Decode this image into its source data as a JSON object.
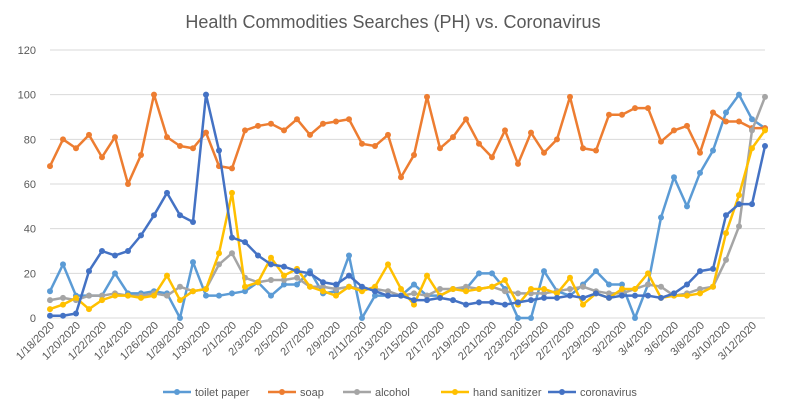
{
  "chart_data": {
    "type": "line",
    "title": "Health Commodities Searches (PH) vs. Coronavirus",
    "xlabel": "",
    "ylabel": "",
    "ylim": [
      0,
      120
    ],
    "yticks": [
      0,
      20,
      40,
      60,
      80,
      100,
      120
    ],
    "grid": true,
    "legend_position": "bottom",
    "x_tick_labels": [
      "1/18/2020",
      "1/20/2020",
      "1/22/2020",
      "1/24/2020",
      "1/26/2020",
      "1/28/2020",
      "1/30/2020",
      "2/1/2020",
      "2/3/2020",
      "2/5/2020",
      "2/7/2020",
      "2/9/2020",
      "2/11/2020",
      "2/13/2020",
      "2/15/2020",
      "2/17/2020",
      "2/19/2020",
      "2/21/2020",
      "2/23/2020",
      "2/25/2020",
      "2/27/2020",
      "2/29/2020",
      "3/2/2020",
      "3/4/2020",
      "3/6/2020",
      "3/8/2020",
      "3/10/2020",
      "3/12/2020"
    ],
    "x": [
      "1/18/2020",
      "1/19/2020",
      "1/20/2020",
      "1/21/2020",
      "1/22/2020",
      "1/23/2020",
      "1/24/2020",
      "1/25/2020",
      "1/26/2020",
      "1/27/2020",
      "1/28/2020",
      "1/29/2020",
      "1/30/2020",
      "1/31/2020",
      "2/1/2020",
      "2/2/2020",
      "2/3/2020",
      "2/4/2020",
      "2/5/2020",
      "2/6/2020",
      "2/7/2020",
      "2/8/2020",
      "2/9/2020",
      "2/10/2020",
      "2/11/2020",
      "2/12/2020",
      "2/13/2020",
      "2/14/2020",
      "2/15/2020",
      "2/16/2020",
      "2/17/2020",
      "2/18/2020",
      "2/19/2020",
      "2/20/2020",
      "2/21/2020",
      "2/22/2020",
      "2/23/2020",
      "2/24/2020",
      "2/25/2020",
      "2/26/2020",
      "2/27/2020",
      "2/28/2020",
      "2/29/2020",
      "3/1/2020",
      "3/2/2020",
      "3/3/2020",
      "3/4/2020",
      "3/5/2020",
      "3/6/2020",
      "3/7/2020",
      "3/8/2020",
      "3/9/2020",
      "3/10/2020",
      "3/11/2020",
      "3/12/2020",
      "3/13/2020"
    ],
    "series": [
      {
        "name": "toilet paper",
        "color": "#5B9BD5",
        "values": [
          12,
          24,
          10,
          10,
          10,
          20,
          11,
          11,
          12,
          11,
          0,
          25,
          10,
          10,
          11,
          12,
          16,
          10,
          15,
          15,
          21,
          11,
          12,
          28,
          0,
          10,
          10,
          10,
          15,
          10,
          10,
          13,
          13,
          20,
          20,
          13,
          0,
          0,
          21,
          12,
          10,
          15,
          21,
          15,
          15,
          0,
          15,
          45,
          63,
          50,
          65,
          75,
          92,
          100,
          89,
          85
        ]
      },
      {
        "name": "soap",
        "color": "#ED7D31",
        "values": [
          68,
          80,
          76,
          82,
          72,
          81,
          60,
          73,
          100,
          81,
          77,
          76,
          83,
          68,
          67,
          84,
          86,
          87,
          84,
          89,
          82,
          87,
          88,
          89,
          78,
          77,
          82,
          63,
          73,
          99,
          76,
          81,
          89,
          78,
          72,
          84,
          69,
          83,
          74,
          80,
          99,
          76,
          75,
          91,
          91,
          94,
          94,
          79,
          84,
          86,
          74,
          92,
          88,
          88,
          85,
          85
        ]
      },
      {
        "name": "alcohol",
        "color": "#A5A5A5",
        "values": [
          8,
          9,
          8,
          10,
          10,
          11,
          10,
          10,
          11,
          10,
          14,
          12,
          13,
          24,
          29,
          18,
          16,
          17,
          17,
          18,
          14,
          14,
          13,
          14,
          13,
          13,
          12,
          10,
          11,
          10,
          13,
          13,
          14,
          13,
          14,
          12,
          11,
          11,
          11,
          12,
          13,
          14,
          12,
          11,
          11,
          13,
          15,
          14,
          10,
          11,
          13,
          14,
          26,
          41,
          84,
          99
        ]
      },
      {
        "name": "hand sanitizer",
        "color": "#FFC000",
        "values": [
          4,
          6,
          9,
          4,
          8,
          10,
          10,
          9,
          10,
          19,
          8,
          12,
          13,
          29,
          56,
          14,
          16,
          27,
          19,
          22,
          14,
          12,
          10,
          14,
          12,
          14,
          24,
          13,
          6,
          19,
          10,
          13,
          12,
          13,
          14,
          17,
          6,
          13,
          13,
          11,
          18,
          6,
          11,
          9,
          13,
          13,
          20,
          9,
          10,
          10,
          11,
          14,
          38,
          55,
          76,
          84
        ]
      },
      {
        "name": "coronavirus",
        "color": "#4472C4",
        "values": [
          1,
          1,
          2,
          21,
          30,
          28,
          30,
          37,
          46,
          56,
          46,
          43,
          100,
          75,
          36,
          34,
          28,
          24,
          23,
          21,
          20,
          16,
          15,
          19,
          14,
          12,
          10,
          10,
          8,
          8,
          9,
          8,
          6,
          7,
          7,
          6,
          7,
          8,
          9,
          9,
          10,
          9,
          11,
          9,
          10,
          10,
          10,
          9,
          11,
          15,
          21,
          22,
          46,
          51,
          51,
          77
        ]
      }
    ]
  }
}
